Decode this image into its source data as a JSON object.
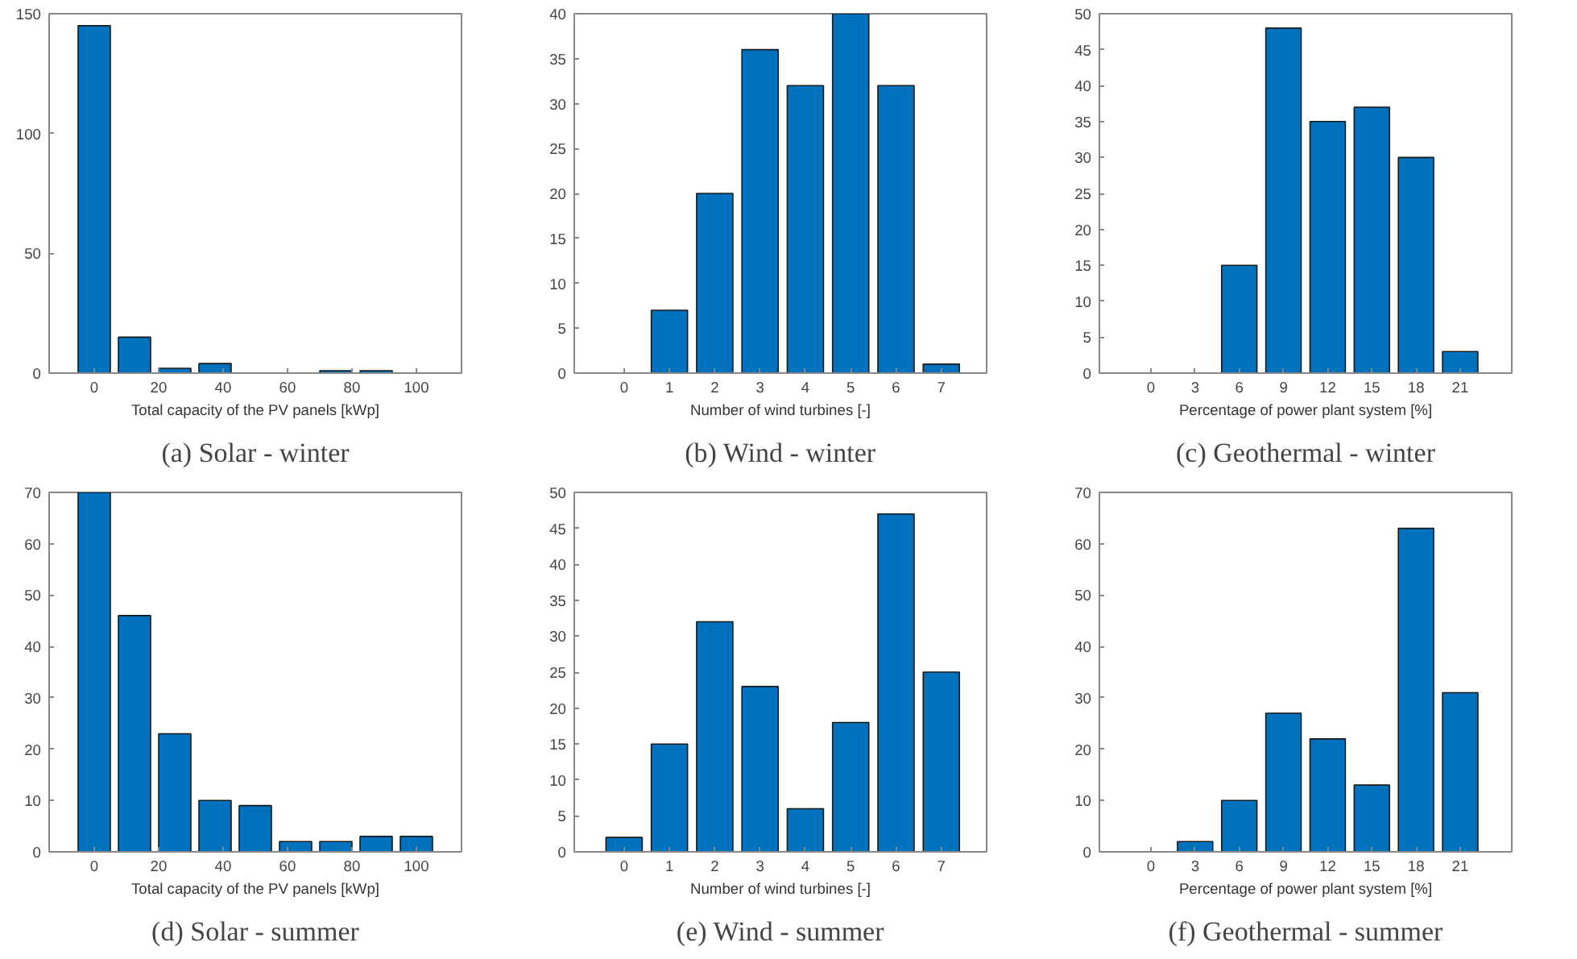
{
  "chart_data": [
    {
      "type": "bar",
      "title": "(a) Solar - winter",
      "xlabel": "Total capacity of the PV panels [kWp]",
      "x": [
        0,
        12.5,
        25,
        37.5,
        50,
        62.5,
        75,
        87.5,
        100
      ],
      "values": [
        145,
        15,
        2,
        4,
        0,
        0,
        1,
        1,
        0
      ],
      "color": "#0072bd",
      "xlim": [
        -14,
        114
      ],
      "xticks": [
        0,
        20,
        40,
        60,
        80,
        100
      ],
      "ylim": [
        0,
        150
      ],
      "yticks": [
        0,
        50,
        100,
        150
      ]
    },
    {
      "type": "bar",
      "title": "(b) Wind - winter",
      "xlabel": "Number of wind turbines [-]",
      "x": [
        0,
        1,
        2,
        3,
        4,
        5,
        6,
        7
      ],
      "values": [
        0,
        7,
        20,
        36,
        32,
        40,
        32,
        1
      ],
      "color": "#0072bd",
      "xlim": [
        -1.1,
        8
      ],
      "xticks": [
        0,
        1,
        2,
        3,
        4,
        5,
        6,
        7
      ],
      "ylim": [
        0,
        40
      ],
      "yticks": [
        0,
        5,
        10,
        15,
        20,
        25,
        30,
        35,
        40
      ]
    },
    {
      "type": "bar",
      "title": "(c) Geothermal - winter",
      "xlabel": "Percentage of power plant system [%]",
      "x": [
        0,
        3,
        6,
        9,
        12,
        15,
        18,
        21
      ],
      "values": [
        0,
        0,
        15,
        48,
        35,
        37,
        30,
        3
      ],
      "color": "#0072bd",
      "xlim": [
        -3.5,
        24.5
      ],
      "xticks": [
        0,
        3,
        6,
        9,
        12,
        15,
        18,
        21
      ],
      "ylim": [
        0,
        50
      ],
      "yticks": [
        0,
        5,
        10,
        15,
        20,
        25,
        30,
        35,
        40,
        45,
        50
      ]
    },
    {
      "type": "bar",
      "title": "(d) Solar - summer",
      "xlabel": "Total capacity of the PV panels [kWp]",
      "x": [
        0,
        12.5,
        25,
        37.5,
        50,
        62.5,
        75,
        87.5,
        100
      ],
      "values": [
        70,
        46,
        23,
        10,
        9,
        2,
        2,
        3,
        3
      ],
      "color": "#0072bd",
      "xlim": [
        -14,
        114
      ],
      "xticks": [
        0,
        20,
        40,
        60,
        80,
        100
      ],
      "ylim": [
        0,
        70
      ],
      "yticks": [
        0,
        10,
        20,
        30,
        40,
        50,
        60,
        70
      ]
    },
    {
      "type": "bar",
      "title": "(e) Wind - summer",
      "xlabel": "Number of wind turbines [-]",
      "x": [
        0,
        1,
        2,
        3,
        4,
        5,
        6,
        7
      ],
      "values": [
        2,
        15,
        32,
        23,
        6,
        18,
        47,
        25
      ],
      "color": "#0072bd",
      "xlim": [
        -1.1,
        8
      ],
      "xticks": [
        0,
        1,
        2,
        3,
        4,
        5,
        6,
        7
      ],
      "ylim": [
        0,
        50
      ],
      "yticks": [
        0,
        5,
        10,
        15,
        20,
        25,
        30,
        35,
        40,
        45,
        50
      ]
    },
    {
      "type": "bar",
      "title": "(f) Geothermal - summer",
      "xlabel": "Percentage of power plant system [%]",
      "x": [
        0,
        3,
        6,
        9,
        12,
        15,
        18,
        21
      ],
      "values": [
        0,
        2,
        10,
        27,
        22,
        13,
        63,
        31
      ],
      "color": "#0072bd",
      "xlim": [
        -3.5,
        24.5
      ],
      "xticks": [
        0,
        3,
        6,
        9,
        12,
        15,
        18,
        21
      ],
      "ylim": [
        0,
        70
      ],
      "yticks": [
        0,
        10,
        20,
        30,
        40,
        50,
        60,
        70
      ]
    }
  ]
}
